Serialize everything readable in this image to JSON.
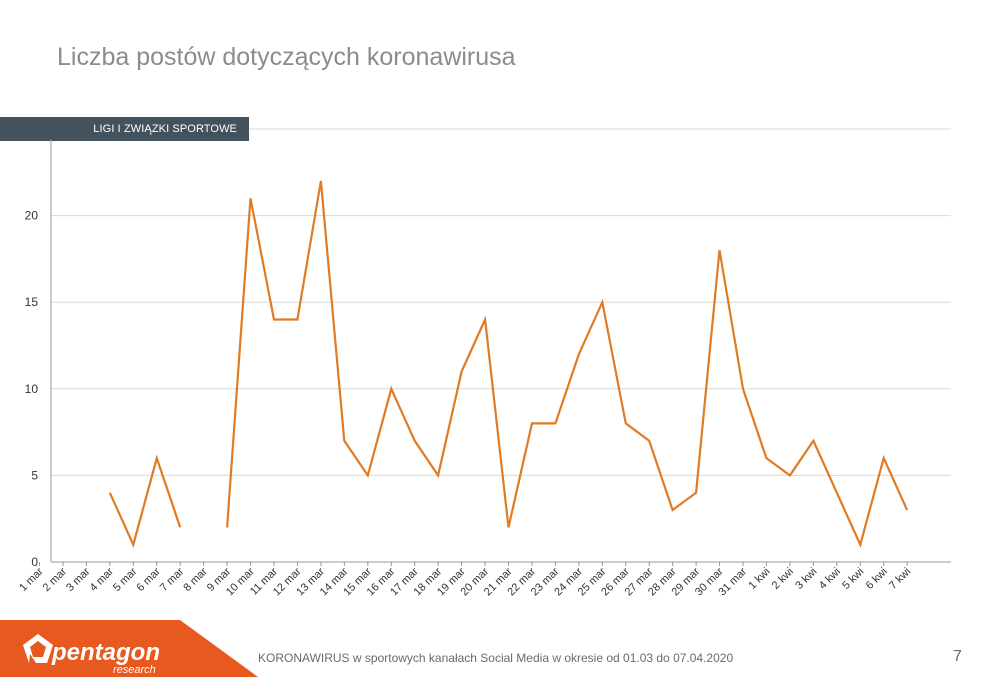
{
  "slide": {
    "title": "Liczba postów dotyczących koronawirusa",
    "category": "LIGI I ZWIĄZKI SPORTOWE",
    "footer": "KORONAWIRUS w sportowych kanałach Social Media w okresie od 01.03 do 07.04.2020",
    "page_number": "7"
  },
  "logo": {
    "name": "pentagon",
    "tagline": "research",
    "color": "#e8591f"
  },
  "chart_data": {
    "type": "line",
    "title": "",
    "xlabel": "",
    "ylabel": "",
    "ylim": [
      0,
      25
    ],
    "yticks": [
      0,
      5,
      10,
      15,
      20
    ],
    "grid": true,
    "line_color": "#e07b24",
    "categories": [
      "1 mar",
      "2 mar",
      "3 mar",
      "4 mar",
      "5 mar",
      "6 mar",
      "7 mar",
      "8 mar",
      "9 mar",
      "10 mar",
      "11 mar",
      "12 mar",
      "13 mar",
      "14 mar",
      "15 mar",
      "16 mar",
      "17 mar",
      "18 mar",
      "19 mar",
      "20 mar",
      "21 mar",
      "22 mar",
      "23 mar",
      "24 mar",
      "25 mar",
      "26 mar",
      "27 mar",
      "28 mar",
      "29 mar",
      "30 mar",
      "31 mar",
      "1 kwi",
      "2 kwi",
      "3 kwi",
      "4 kwi",
      "5 kwi",
      "6 kwi",
      "7 kwi"
    ],
    "series": [
      {
        "values": [
          null,
          null,
          null,
          4,
          1,
          6,
          2,
          null,
          2,
          21,
          14,
          14,
          22,
          7,
          5,
          10,
          7,
          5,
          11,
          14,
          2,
          8,
          8,
          12,
          15,
          8,
          7,
          3,
          4,
          18,
          10,
          6,
          5,
          7,
          4,
          1,
          6,
          3
        ]
      }
    ]
  }
}
